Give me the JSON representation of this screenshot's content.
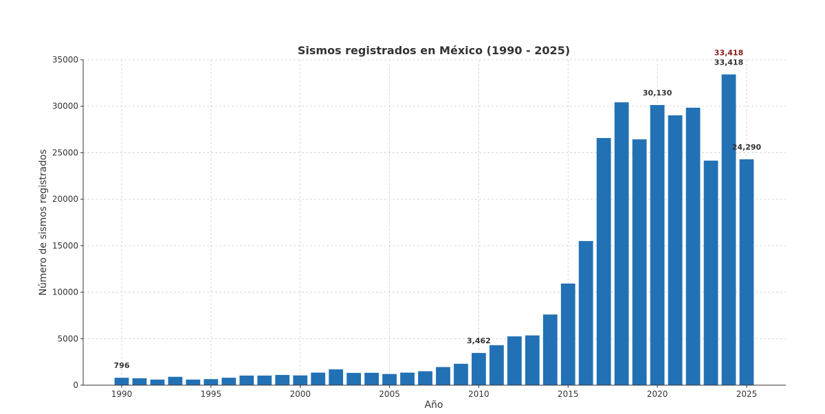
{
  "chart_data": {
    "type": "bar",
    "title": "Sismos registrados en México (1990 - 2025)",
    "xlabel": "Año",
    "ylabel": "Número de sismos registrados",
    "ylim": [
      0,
      35000
    ],
    "yticks": [
      0,
      5000,
      10000,
      15000,
      20000,
      25000,
      30000,
      35000
    ],
    "xticks": [
      1990,
      1995,
      2000,
      2005,
      2010,
      2015,
      2020,
      2025
    ],
    "grid": true,
    "bar_color": "#2271b5",
    "categories": [
      1990,
      1991,
      1992,
      1993,
      1994,
      1995,
      1996,
      1997,
      1998,
      1999,
      2000,
      2001,
      2002,
      2003,
      2004,
      2005,
      2006,
      2007,
      2008,
      2009,
      2010,
      2011,
      2012,
      2013,
      2014,
      2015,
      2016,
      2017,
      2018,
      2019,
      2020,
      2021,
      2022,
      2023,
      2024,
      2025
    ],
    "values": [
      796,
      740,
      600,
      900,
      600,
      650,
      800,
      1030,
      1030,
      1100,
      1050,
      1350,
      1700,
      1320,
      1330,
      1200,
      1350,
      1500,
      1950,
      2300,
      3462,
      4300,
      5250,
      5350,
      7600,
      10930,
      15500,
      26580,
      30420,
      26440,
      30130,
      29020,
      29840,
      24150,
      33418,
      24290
    ],
    "annotations": [
      {
        "year": 1990,
        "label": "796",
        "color": "#333333"
      },
      {
        "year": 2010,
        "label": "3,462",
        "color": "#333333"
      },
      {
        "year": 2020,
        "label": "30,130",
        "color": "#333333"
      },
      {
        "year": 2024,
        "label": "33,418",
        "color": "#8b1a1a"
      },
      {
        "year": 2024,
        "label": "33,418",
        "color": "#333333"
      },
      {
        "year": 2025,
        "label": "24,290",
        "color": "#333333"
      }
    ]
  }
}
